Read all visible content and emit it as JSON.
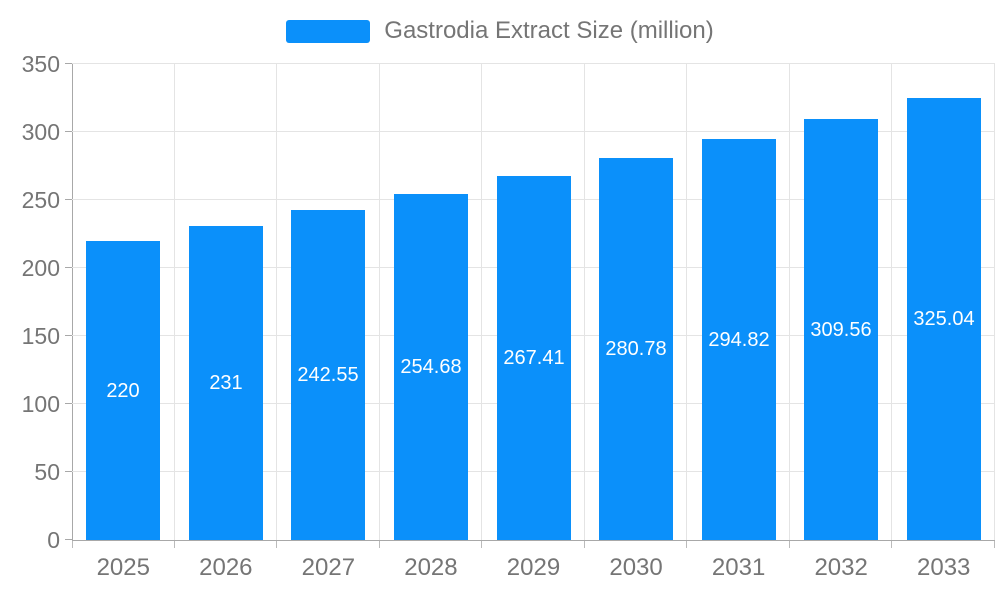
{
  "chart_data": {
    "type": "bar",
    "title": "Gastrodia Extract Size (million)",
    "categories": [
      "2025",
      "2026",
      "2027",
      "2028",
      "2029",
      "2030",
      "2031",
      "2032",
      "2033"
    ],
    "values": [
      220,
      231,
      242.55,
      254.68,
      267.41,
      280.78,
      294.82,
      309.56,
      325.04
    ],
    "value_labels": [
      "220",
      "231",
      "242.55",
      "254.68",
      "267.41",
      "280.78",
      "294.82",
      "309.56",
      "325.04"
    ],
    "xlabel": "",
    "ylabel": "",
    "ylim": [
      0,
      350
    ],
    "yticks": [
      0,
      50,
      100,
      150,
      200,
      250,
      300,
      350
    ],
    "grid": true,
    "legend_position": "top-center",
    "colors": {
      "bar": "#0b90fa",
      "bar_value_label": "#ffffff",
      "axis_text": "#757575",
      "axis_line": "#a8a8a8",
      "gridline": "#e4e4e4",
      "tick": "#bbbbbb",
      "background": "#ffffff"
    }
  }
}
